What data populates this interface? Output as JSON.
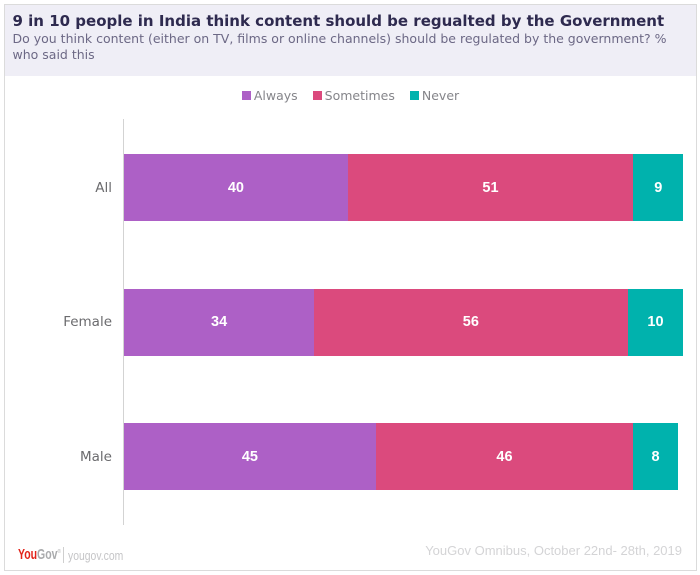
{
  "title": "9 in 10 people in India think content should be regualted by the Government",
  "subtitle": "Do you think content (either on TV, films or online channels) should be regulated by the government? % who said this",
  "footer": {
    "logo_you": "You",
    "logo_gov": "Gov",
    "logo_reg": "®",
    "site": "yougov.com",
    "source": "YouGov Omnibus, October 22nd- 28th, 2019"
  },
  "colors": {
    "header_bg": "#efeef6",
    "title": "#2e2a4f",
    "subtitle": "#6c6885",
    "always": "#ad60c6",
    "sometimes": "#db4a7d",
    "never": "#00b2ad",
    "axis": "#d3d3d3",
    "card_border": "#dbdbdb",
    "value_label": "#ffffff"
  },
  "chart_data": {
    "type": "bar",
    "orientation": "horizontal",
    "stacked": true,
    "title": "9 in 10 people in India think content should be regualted by the Government",
    "xlabel": "",
    "ylabel": "",
    "xlim": [
      0,
      100
    ],
    "grid": false,
    "legend_position": "top",
    "categories": [
      "All",
      "Female",
      "Male"
    ],
    "series": [
      {
        "name": "Always",
        "color": "#ad60c6",
        "values": [
          40,
          34,
          45
        ]
      },
      {
        "name": "Sometimes",
        "color": "#db4a7d",
        "values": [
          51,
          56,
          46
        ]
      },
      {
        "name": "Never",
        "color": "#00b2ad",
        "values": [
          9,
          10,
          8
        ]
      }
    ]
  }
}
